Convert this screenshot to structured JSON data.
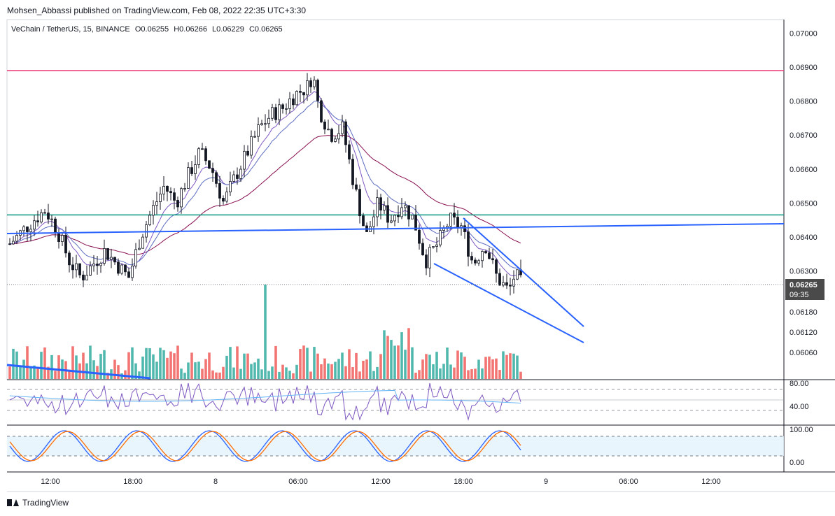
{
  "header": {
    "published": "Mohsen_Abbassi published on TradingView.com, Feb 08, 2022 22:35 UTC+3:30"
  },
  "legend": {
    "symbol": "VeChain / TetherUS, 15, BINANCE",
    "open": "O0.06255",
    "high": "H0.06266",
    "low": "L0.06229",
    "close": "C0.06265"
  },
  "footer": {
    "brand": "TradingView"
  },
  "colors": {
    "up": "#26a69a",
    "down": "#ef5350",
    "candle": "#131722",
    "resistance": "#ec407a",
    "support": "#089981",
    "trendline": "#2962ff",
    "ema_fast": "#7e57c2",
    "ema_slow": "#880e4f"
  },
  "chart_data": {
    "type": "candlestick",
    "title": "VeChain / TetherUS, 15, BINANCE",
    "price_axis": {
      "ticks": [
        "0.07000",
        "0.06900",
        "0.06800",
        "0.06700",
        "0.06600",
        "0.06500",
        "0.06400",
        "0.06300",
        "0.06180",
        "0.06120",
        "0.06060"
      ],
      "ylim": [
        0.0598,
        0.0704
      ]
    },
    "time_axis": {
      "ticks": [
        "12:00",
        "18:00",
        "8",
        "06:00",
        "12:00",
        "18:00",
        "9",
        "06:00",
        "12:00"
      ]
    },
    "last_price": {
      "value": "0.06265",
      "countdown": "09:35"
    },
    "horizontal_lines": [
      {
        "name": "resistance",
        "value": 0.0689
      },
      {
        "name": "support",
        "value": 0.06465
      }
    ],
    "close_path": [
      [
        0,
        0.0638
      ],
      [
        4,
        0.0645
      ],
      [
        6,
        0.0648
      ],
      [
        8,
        0.0642
      ],
      [
        10,
        0.0633
      ],
      [
        12,
        0.0628
      ],
      [
        14,
        0.0632
      ],
      [
        16,
        0.0636
      ],
      [
        18,
        0.0632
      ],
      [
        20,
        0.0628
      ],
      [
        22,
        0.064
      ],
      [
        24,
        0.0648
      ],
      [
        26,
        0.0655
      ],
      [
        28,
        0.065
      ],
      [
        30,
        0.0658
      ],
      [
        32,
        0.0665
      ],
      [
        34,
        0.066
      ],
      [
        36,
        0.065
      ],
      [
        38,
        0.0658
      ],
      [
        40,
        0.0665
      ],
      [
        42,
        0.0672
      ],
      [
        44,
        0.0676
      ],
      [
        46,
        0.0678
      ],
      [
        48,
        0.0682
      ],
      [
        50,
        0.0684
      ],
      [
        51,
        0.0688
      ],
      [
        52,
        0.0678
      ],
      [
        54,
        0.067
      ],
      [
        56,
        0.0672
      ],
      [
        58,
        0.0655
      ],
      [
        60,
        0.064
      ],
      [
        62,
        0.065
      ],
      [
        64,
        0.0645
      ],
      [
        66,
        0.065
      ],
      [
        68,
        0.0645
      ],
      [
        70,
        0.0633
      ],
      [
        72,
        0.0638
      ],
      [
        74,
        0.0645
      ],
      [
        76,
        0.0643
      ],
      [
        78,
        0.0632
      ],
      [
        80,
        0.0638
      ],
      [
        82,
        0.0628
      ],
      [
        84,
        0.0624
      ],
      [
        85,
        0.0629
      ],
      [
        86,
        0.06265
      ]
    ],
    "indicators": {
      "rsi": {
        "levels": [
          "80.00",
          "40.00"
        ]
      },
      "stoch": {
        "levels": [
          "100.00",
          "0.00"
        ]
      }
    }
  }
}
